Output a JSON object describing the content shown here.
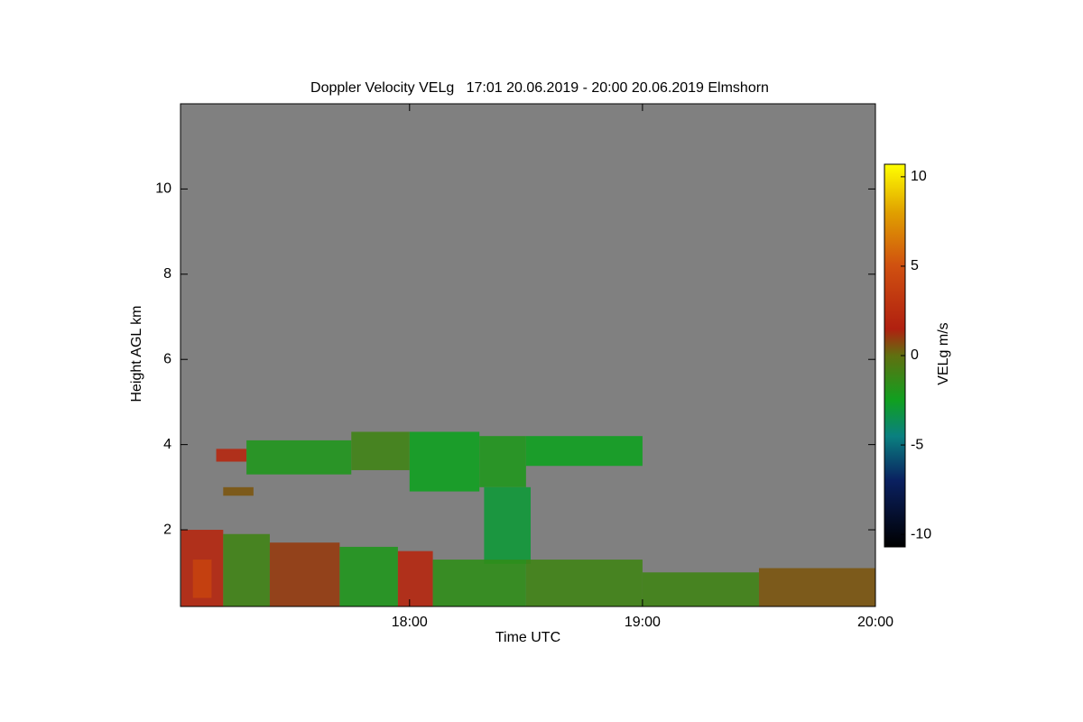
{
  "chart_data": {
    "type": "time-height",
    "title": "Doppler Velocity VELg   17:01 20.06.2019 - 20:00 20.06.2019 Elmshorn",
    "x_label": "Time UTC",
    "y_label": "Height AGL km",
    "colorbar_label": "VELg m/s",
    "background": "#808080",
    "xlim": [
      17.0167,
      20
    ],
    "xticks": [
      {
        "value": 18,
        "label": "18:00"
      },
      {
        "value": 19,
        "label": "19:00"
      },
      {
        "value": 20,
        "label": "20:00"
      }
    ],
    "ylim": [
      0.2,
      12
    ],
    "yticks": [
      2,
      4,
      6,
      8,
      10
    ],
    "clim": [
      -10.7,
      10.7
    ],
    "cticks": [
      10,
      5,
      0,
      -5,
      -10
    ],
    "colorscale": [
      {
        "value": -10.7,
        "color": "#000000"
      },
      {
        "value": -7,
        "color": "#0a2060"
      },
      {
        "value": -4.5,
        "color": "#0a8080"
      },
      {
        "value": -2.5,
        "color": "#10a020"
      },
      {
        "value": 0,
        "color": "#607010"
      },
      {
        "value": 1.5,
        "color": "#b02010"
      },
      {
        "value": 5,
        "color": "#d05010"
      },
      {
        "value": 8,
        "color": "#e0a000"
      },
      {
        "value": 10.7,
        "color": "#ffff00"
      }
    ],
    "echoes": [
      {
        "t": [
          17.17,
          17.3
        ],
        "h": [
          3.6,
          3.9
        ],
        "v": 2
      },
      {
        "t": [
          17.3,
          17.75
        ],
        "h": [
          3.3,
          4.1
        ],
        "v": -2
      },
      {
        "t": [
          17.75,
          18.0
        ],
        "h": [
          3.4,
          4.3
        ],
        "v": -1
      },
      {
        "t": [
          18.0,
          18.3
        ],
        "h": [
          2.9,
          4.3
        ],
        "v": -2.5
      },
      {
        "t": [
          18.3,
          18.5
        ],
        "h": [
          3.0,
          4.2
        ],
        "v": -2
      },
      {
        "t": [
          18.5,
          19.0
        ],
        "h": [
          3.5,
          4.2
        ],
        "v": -2.5
      },
      {
        "t": [
          18.32,
          18.52
        ],
        "h": [
          1.2,
          3.0
        ],
        "v": -3
      },
      {
        "t": [
          17.2,
          17.33
        ],
        "h": [
          2.8,
          3.0
        ],
        "v": 0.5
      },
      {
        "t": [
          17.02,
          17.2
        ],
        "h": [
          0.2,
          2.0
        ],
        "v": 2
      },
      {
        "t": [
          17.2,
          17.4
        ],
        "h": [
          0.2,
          1.9
        ],
        "v": -1
      },
      {
        "t": [
          17.4,
          17.7
        ],
        "h": [
          0.2,
          1.7
        ],
        "v": 1
      },
      {
        "t": [
          17.7,
          17.95
        ],
        "h": [
          0.2,
          1.6
        ],
        "v": -2
      },
      {
        "t": [
          17.95,
          18.1
        ],
        "h": [
          0.2,
          1.5
        ],
        "v": 2
      },
      {
        "t": [
          18.1,
          18.5
        ],
        "h": [
          0.2,
          1.3
        ],
        "v": -1.5
      },
      {
        "t": [
          18.5,
          19.0
        ],
        "h": [
          0.2,
          1.3
        ],
        "v": -1
      },
      {
        "t": [
          19.0,
          19.5
        ],
        "h": [
          0.2,
          1.0
        ],
        "v": -1
      },
      {
        "t": [
          19.5,
          20.0
        ],
        "h": [
          0.2,
          1.1
        ],
        "v": 0.5
      },
      {
        "t": [
          17.07,
          17.15
        ],
        "h": [
          0.4,
          1.3
        ],
        "v": 4
      }
    ]
  }
}
